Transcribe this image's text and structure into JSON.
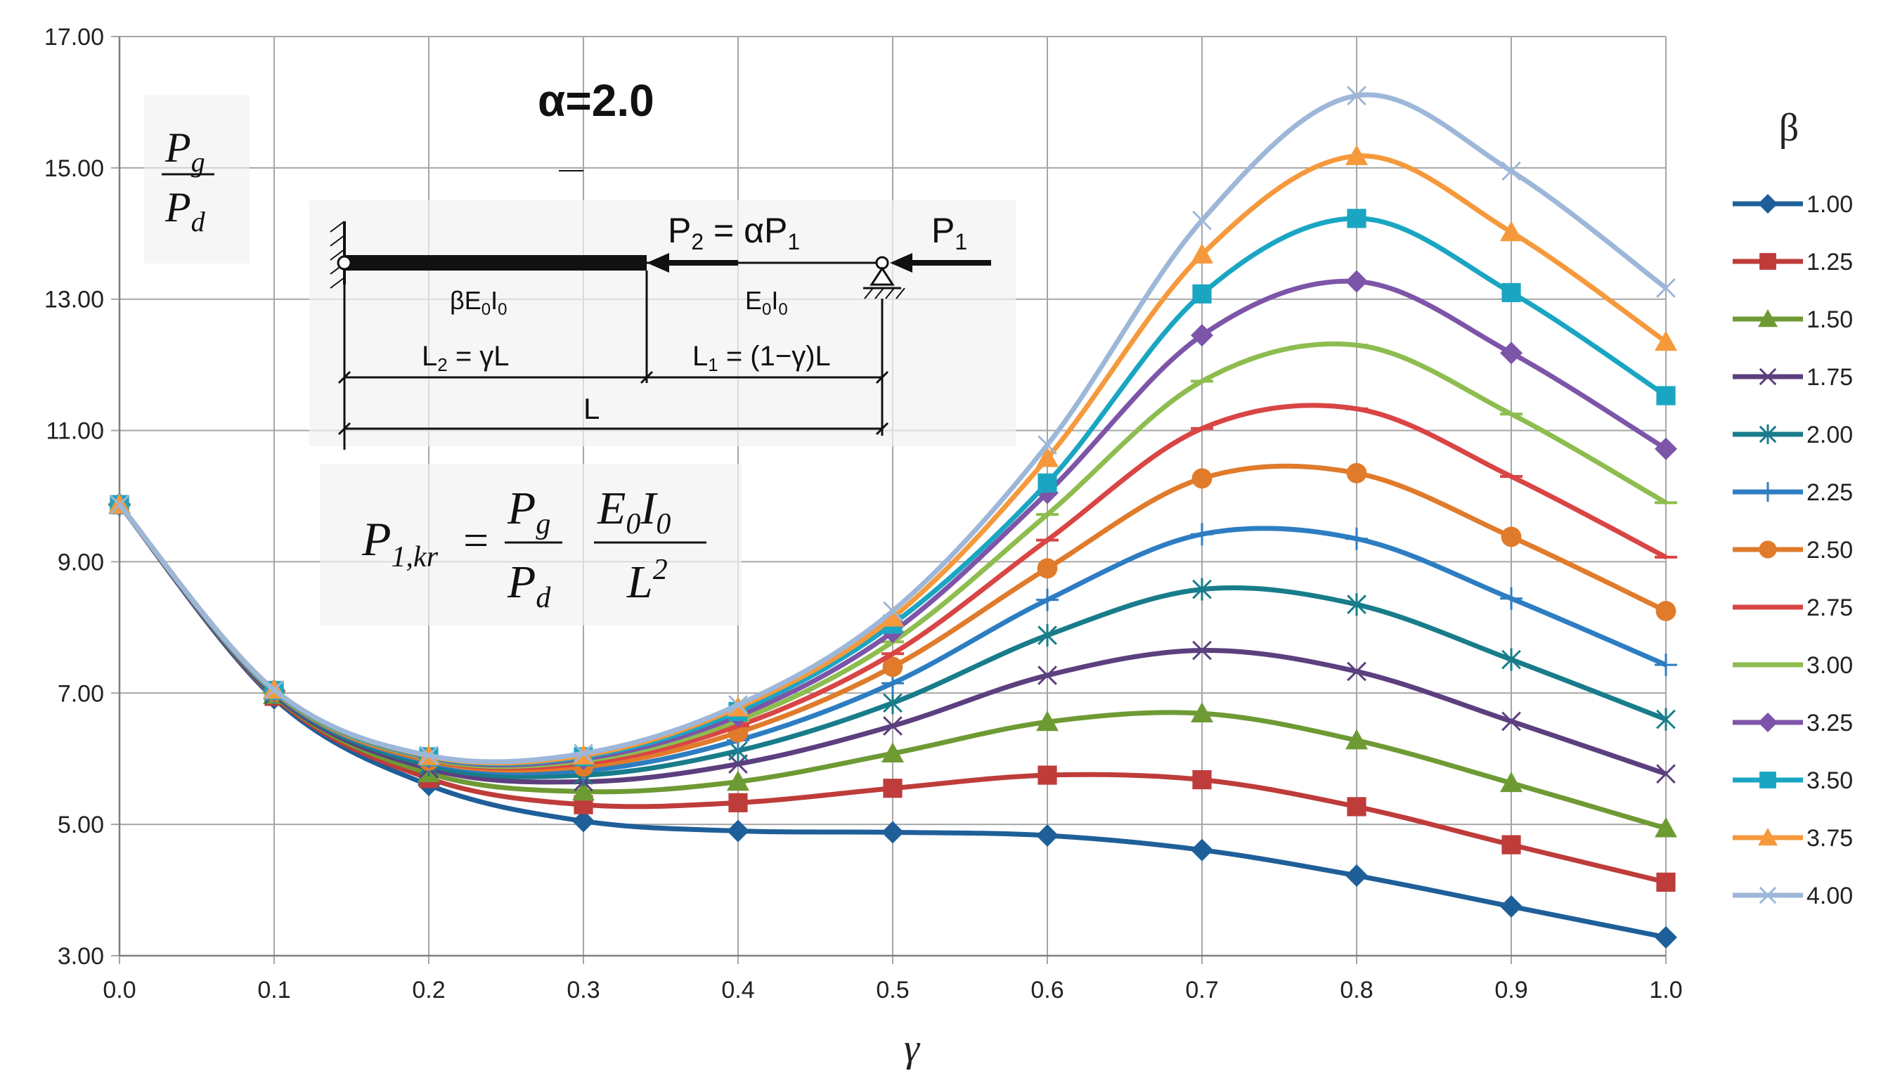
{
  "chart_data": {
    "type": "line",
    "title": "α=2.0",
    "xlabel": "γ",
    "ylabel_numerator": "P",
    "ylabel_numerator_sub": "g",
    "ylabel_denominator": "P",
    "ylabel_denominator_sub": "d",
    "legend_title": "β",
    "legend_position": "right",
    "grid": true,
    "xlim": [
      0.0,
      1.0
    ],
    "ylim": [
      3.0,
      17.0
    ],
    "x": [
      0.0,
      0.1,
      0.2,
      0.3,
      0.4,
      0.5,
      0.6,
      0.7,
      0.8,
      0.9,
      1.0
    ],
    "x_tick_labels": [
      "0.0",
      "0.1",
      "0.2",
      "0.3",
      "0.4",
      "0.5",
      "0.6",
      "0.7",
      "0.8",
      "0.9",
      "1.0"
    ],
    "y_tick_labels": [
      "3.00",
      "5.00",
      "7.00",
      "9.00",
      "11.00",
      "13.00",
      "15.00",
      "17.00"
    ],
    "y_ticks": [
      3,
      5,
      7,
      9,
      11,
      13,
      15,
      17
    ],
    "series": [
      {
        "name": "1.00",
        "color": "#1f5f99",
        "marker": "diamond",
        "values": [
          9.87,
          6.92,
          5.6,
          5.05,
          4.9,
          4.88,
          4.83,
          4.61,
          4.22,
          3.75,
          3.28
        ]
      },
      {
        "name": "1.25",
        "color": "#be3c3a",
        "marker": "square",
        "values": [
          9.87,
          6.95,
          5.7,
          5.3,
          5.33,
          5.55,
          5.75,
          5.68,
          5.27,
          4.69,
          4.12
        ]
      },
      {
        "name": "1.50",
        "color": "#6e9a34",
        "marker": "triangle",
        "values": [
          9.87,
          6.97,
          5.78,
          5.5,
          5.65,
          6.08,
          6.56,
          6.69,
          6.28,
          5.63,
          4.94
        ]
      },
      {
        "name": "1.75",
        "color": "#5c3f7f",
        "marker": "x",
        "values": [
          9.87,
          6.98,
          5.85,
          5.65,
          5.92,
          6.5,
          7.27,
          7.65,
          7.33,
          6.57,
          5.77
        ]
      },
      {
        "name": "2.00",
        "color": "#187c8a",
        "marker": "asterisk",
        "values": [
          9.87,
          7.0,
          5.9,
          5.75,
          6.12,
          6.85,
          7.88,
          8.58,
          8.35,
          7.51,
          6.6
        ]
      },
      {
        "name": "2.25",
        "color": "#2d7dc2",
        "marker": "plus",
        "values": [
          9.87,
          7.01,
          5.95,
          5.82,
          6.28,
          7.15,
          8.42,
          9.42,
          9.35,
          8.44,
          7.43
        ]
      },
      {
        "name": "2.50",
        "color": "#e07b2b",
        "marker": "circle",
        "values": [
          9.87,
          7.02,
          5.97,
          5.88,
          6.4,
          7.4,
          8.9,
          10.27,
          10.35,
          9.38,
          8.25
        ]
      },
      {
        "name": "2.75",
        "color": "#d94545",
        "marker": "dash",
        "values": [
          9.87,
          7.03,
          5.99,
          5.93,
          6.5,
          7.6,
          9.33,
          11.03,
          11.33,
          10.3,
          9.07
        ]
      },
      {
        "name": "3.00",
        "color": "#8dbd4f",
        "marker": "dash",
        "values": [
          9.87,
          7.03,
          6.0,
          5.97,
          6.58,
          7.78,
          9.72,
          11.75,
          12.3,
          11.25,
          9.9
        ]
      },
      {
        "name": "3.25",
        "color": "#7d55a8",
        "marker": "diamond",
        "values": [
          9.87,
          7.04,
          6.02,
          6.0,
          6.65,
          7.93,
          10.05,
          12.45,
          13.27,
          12.18,
          10.72
        ]
      },
      {
        "name": "3.50",
        "color": "#1aa6c2",
        "marker": "square",
        "values": [
          9.87,
          7.04,
          6.03,
          6.03,
          6.72,
          8.05,
          10.2,
          13.08,
          14.23,
          13.1,
          11.53
        ]
      },
      {
        "name": "3.75",
        "color": "#f5993c",
        "marker": "triangle",
        "values": [
          9.87,
          7.05,
          6.04,
          6.05,
          6.78,
          8.15,
          10.58,
          13.68,
          15.18,
          14.02,
          12.35
        ]
      },
      {
        "name": "4.00",
        "color": "#9db7d9",
        "marker": "x",
        "values": [
          9.87,
          7.05,
          6.05,
          6.08,
          6.82,
          8.25,
          10.78,
          14.2,
          16.1,
          14.95,
          13.17
        ]
      }
    ]
  },
  "diagram": {
    "p2_label": "P",
    "p2_sub": "2",
    "p2_rest": " = αP",
    "p2_rest_sub": "1",
    "p1_label": "P",
    "p1_sub": "1",
    "left_segment_label": "βE",
    "left_segment_sub1": "0",
    "left_segment_mid": "I",
    "left_segment_sub2": "0",
    "right_segment_label": "E",
    "right_segment_sub1": "0",
    "right_segment_mid": "I",
    "right_segment_sub2": "0",
    "l2_label": "L",
    "l2_sub": "2",
    "l2_rest": " = γL",
    "l1_label": "L",
    "l1_sub": "1",
    "l1_rest": " = (1−γ)L",
    "total_label": "L"
  },
  "formula": {
    "lhs": "P",
    "lhs_sub": "1,kr",
    "eq": "=",
    "frac1_num": "P",
    "frac1_num_sub": "g",
    "frac1_den": "P",
    "frac1_den_sub": "d",
    "frac2_num_a": "E",
    "frac2_num_a_sub": "0",
    "frac2_num_b": "I",
    "frac2_num_b_sub": "0",
    "frac2_den": "L",
    "frac2_den_sup": "2"
  }
}
